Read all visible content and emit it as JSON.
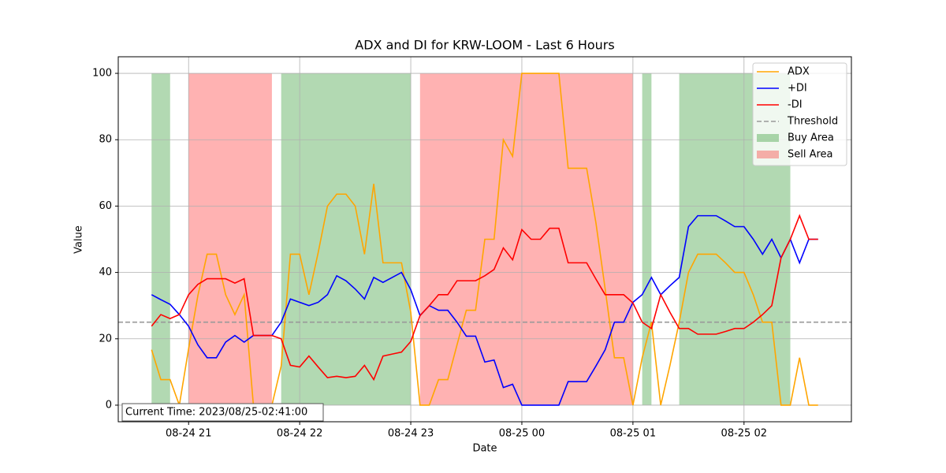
{
  "chart_data": {
    "type": "line",
    "title": "ADX and DI for KRW-LOOM - Last 6 Hours",
    "x_label": "Date",
    "y_label": "Value",
    "x": [
      "08-24 20:40",
      "08-24 20:45",
      "08-24 20:50",
      "08-24 20:55",
      "08-24 21:00",
      "08-24 21:05",
      "08-24 21:10",
      "08-24 21:15",
      "08-24 21:20",
      "08-24 21:25",
      "08-24 21:30",
      "08-24 21:35",
      "08-24 21:40",
      "08-24 21:45",
      "08-24 21:50",
      "08-24 21:55",
      "08-24 22:00",
      "08-24 22:05",
      "08-24 22:10",
      "08-24 22:15",
      "08-24 22:20",
      "08-24 22:25",
      "08-24 22:30",
      "08-24 22:35",
      "08-24 22:40",
      "08-24 22:45",
      "08-24 22:50",
      "08-24 22:55",
      "08-24 23:00",
      "08-24 23:05",
      "08-24 23:10",
      "08-24 23:15",
      "08-24 23:20",
      "08-24 23:25",
      "08-24 23:30",
      "08-24 23:35",
      "08-24 23:40",
      "08-24 23:45",
      "08-24 23:50",
      "08-24 23:55",
      "08-25 00:00",
      "08-25 00:05",
      "08-25 00:10",
      "08-25 00:15",
      "08-25 00:20",
      "08-25 00:25",
      "08-25 00:30",
      "08-25 00:35",
      "08-25 00:40",
      "08-25 00:45",
      "08-25 00:50",
      "08-25 00:55",
      "08-25 01:00",
      "08-25 01:05",
      "08-25 01:10",
      "08-25 01:15",
      "08-25 01:20",
      "08-25 01:25",
      "08-25 01:30",
      "08-25 01:35",
      "08-25 01:40",
      "08-25 01:45",
      "08-25 01:50",
      "08-25 01:55",
      "08-25 02:00",
      "08-25 02:05",
      "08-25 02:10",
      "08-25 02:15",
      "08-25 02:20",
      "08-25 02:25",
      "08-25 02:30",
      "08-25 02:35",
      "08-25 02:40"
    ],
    "series": [
      {
        "name": "ADX",
        "color": "#ffa500",
        "values": [
          16.7,
          7.7,
          7.7,
          0,
          17,
          33,
          45.5,
          45.5,
          33.3,
          27.3,
          33.3,
          0,
          0,
          0,
          11.8,
          45.5,
          45.5,
          33.3,
          46,
          60,
          63.6,
          63.6,
          60,
          45.5,
          66.7,
          42.9,
          42.9,
          42.9,
          28,
          0,
          0,
          7.7,
          7.7,
          18.2,
          28.6,
          28.6,
          50,
          50,
          80,
          75,
          100,
          100,
          100,
          100,
          100,
          71.4,
          71.4,
          71.4,
          55,
          35,
          14.3,
          14.3,
          0,
          14.3,
          25,
          0,
          12,
          25,
          40,
          45.5,
          45.5,
          45.5,
          42.9,
          40,
          40,
          33.3,
          25,
          25,
          0,
          0,
          14.3,
          0,
          0
        ]
      },
      {
        "name": "+DI",
        "color": "#0000ff",
        "values": [
          33.3,
          31.8,
          30.4,
          27.3,
          23.8,
          18.2,
          14.3,
          14.3,
          19,
          21,
          19,
          21,
          21,
          21,
          25,
          32,
          31,
          30,
          31,
          33.3,
          39,
          37.5,
          35,
          32,
          38.5,
          37,
          38.5,
          40,
          34.8,
          27,
          30,
          28.6,
          28.6,
          25,
          20.8,
          20.8,
          13,
          13.6,
          5.3,
          6.3,
          0,
          0,
          0,
          0,
          0,
          7.1,
          7.1,
          7.1,
          11.8,
          16.7,
          25,
          25,
          31,
          33.3,
          38.5,
          33.3,
          36,
          38.5,
          53.8,
          57.1,
          57.1,
          57.1,
          55.5,
          53.8,
          53.8,
          50,
          45.5,
          50,
          44.4,
          50,
          42.9,
          50,
          50
        ]
      },
      {
        "name": "-DI",
        "color": "#ff0000",
        "values": [
          23.8,
          27.3,
          26.1,
          27.3,
          33.3,
          36.4,
          38.1,
          38.1,
          38.1,
          36.8,
          38.1,
          21,
          21,
          21,
          20,
          12,
          11.5,
          14.8,
          11.5,
          8.3,
          8.7,
          8.3,
          8.7,
          12,
          7.7,
          14.8,
          15.4,
          16,
          19.2,
          27,
          30,
          33.3,
          33.3,
          37.5,
          37.5,
          37.5,
          39,
          40.9,
          47.4,
          43.8,
          52.9,
          50,
          50,
          53.3,
          53.3,
          42.9,
          42.9,
          42.9,
          38,
          33.3,
          33.3,
          33.3,
          30.8,
          25,
          23.1,
          33.3,
          28,
          23.1,
          23.1,
          21.4,
          21.4,
          21.4,
          22.2,
          23.1,
          23.1,
          25,
          27.3,
          30,
          44.4,
          50,
          57.1,
          50,
          50
        ]
      }
    ],
    "threshold": {
      "name": "Threshold",
      "value": 25,
      "color": "#999999"
    },
    "areas": [
      {
        "name": "Buy Area",
        "color": "#008000",
        "alpha": 0.3,
        "spans": [
          [
            "08-24 20:40",
            "08-24 20:50"
          ],
          [
            "08-24 21:50",
            "08-24 23:00"
          ],
          [
            "08-25 01:05",
            "08-25 01:10"
          ],
          [
            "08-25 01:25",
            "08-25 02:25"
          ]
        ]
      },
      {
        "name": "Sell Area",
        "color": "#ff0000",
        "alpha": 0.3,
        "spans": [
          [
            "08-24 21:00",
            "08-24 21:45"
          ],
          [
            "08-24 23:05",
            "08-25 01:00"
          ]
        ]
      }
    ],
    "area_range": [
      0,
      100
    ],
    "xlim": [
      "08-24 20:22",
      "08-25 02:58"
    ],
    "xticks": [
      {
        "value": "08-24 21:00",
        "label": "08-24 21"
      },
      {
        "value": "08-24 22:00",
        "label": "08-24 22"
      },
      {
        "value": "08-24 23:00",
        "label": "08-24 23"
      },
      {
        "value": "08-25 00:00",
        "label": "08-25 00"
      },
      {
        "value": "08-25 01:00",
        "label": "08-25 01"
      },
      {
        "value": "08-25 02:00",
        "label": "08-25 02"
      }
    ],
    "ylim": [
      -5,
      105
    ],
    "yticks": [
      0,
      20,
      40,
      60,
      80,
      100
    ],
    "grid": true,
    "legend": "upper right",
    "annotation": "Current Time: 2023/08/25-02:41:00"
  }
}
